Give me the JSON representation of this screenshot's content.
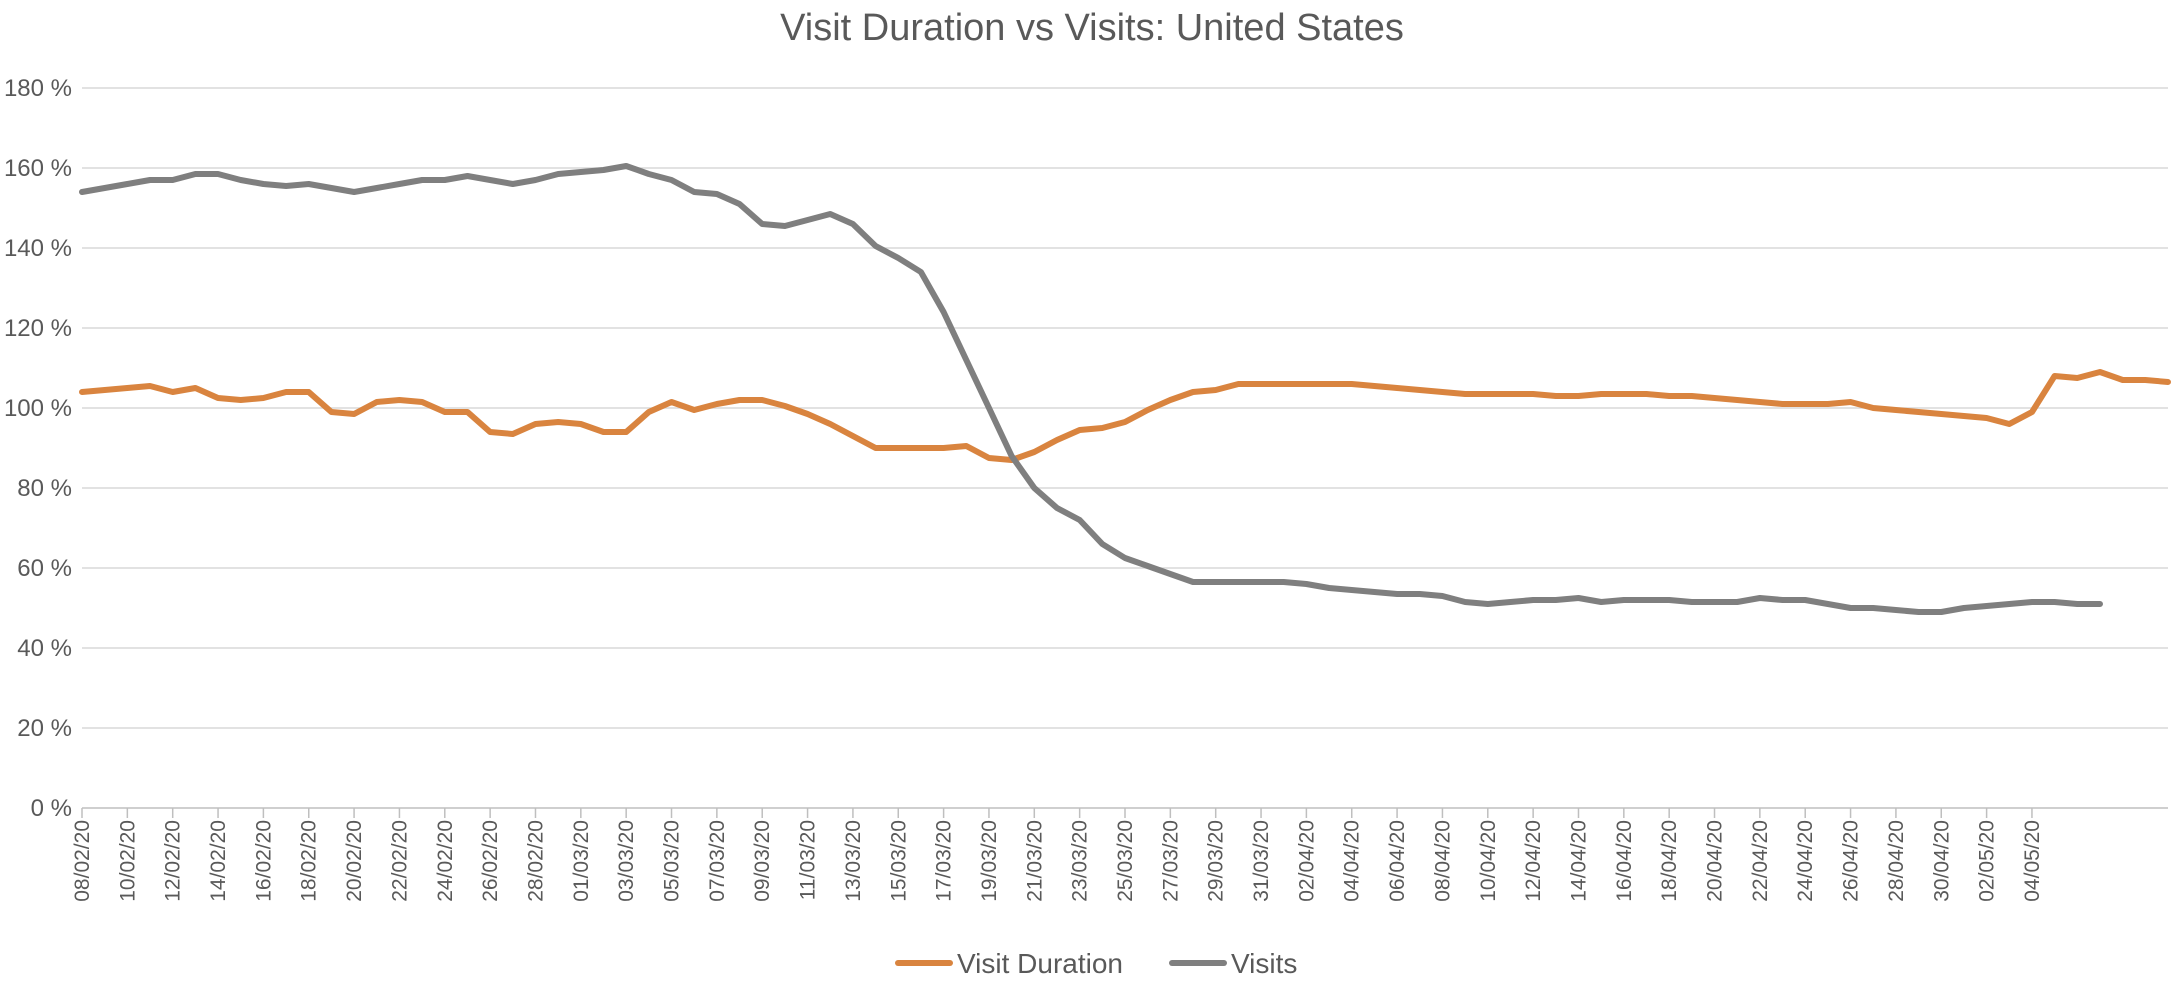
{
  "chart_data": {
    "type": "line",
    "title": "Visit Duration vs Visits: United States",
    "xlabel": "",
    "ylabel": "",
    "ylim": [
      0,
      180
    ],
    "yticks": [
      0,
      20,
      40,
      60,
      80,
      100,
      120,
      140,
      160,
      180
    ],
    "ytick_labels": [
      "0 %",
      "20 %",
      "40 %",
      "60 %",
      "80 %",
      "100 %",
      "120 %",
      "140 %",
      "160 %",
      "180 %"
    ],
    "grid": true,
    "legend_position": "bottom",
    "x_tick_labels": [
      "08/02/20",
      "10/02/20",
      "12/02/20",
      "14/02/20",
      "16/02/20",
      "18/02/20",
      "20/02/20",
      "22/02/20",
      "24/02/20",
      "26/02/20",
      "28/02/20",
      "01/03/20",
      "03/03/20",
      "05/03/20",
      "07/03/20",
      "09/03/20",
      "11/03/20",
      "13/03/20",
      "15/03/20",
      "17/03/20",
      "19/03/20",
      "21/03/20",
      "23/03/20",
      "25/03/20",
      "27/03/20",
      "29/03/20",
      "31/03/20",
      "02/04/20",
      "04/04/20",
      "06/04/20",
      "08/04/20",
      "10/04/20",
      "12/04/20",
      "14/04/20",
      "16/04/20",
      "18/04/20",
      "20/04/20",
      "22/04/20",
      "24/04/20",
      "26/04/20",
      "28/04/20",
      "30/04/20",
      "02/05/20",
      "04/05/20"
    ],
    "x_start": "08/02/20",
    "x_end": "04/05/20",
    "series": [
      {
        "name": "Visit Duration",
        "color": "#d9843f",
        "values": [
          104,
          104.5,
          105,
          105.5,
          104,
          105,
          102.5,
          102,
          102.5,
          104,
          104,
          99,
          98.5,
          101.5,
          102,
          101.5,
          99,
          99,
          94,
          93.5,
          96,
          96.5,
          96,
          94,
          94,
          99,
          101.5,
          99.5,
          101,
          102,
          102,
          100.5,
          98.5,
          96,
          93,
          90,
          90,
          90,
          90,
          90.5,
          87.5,
          87,
          89,
          92,
          94.5,
          95,
          96.5,
          99.5,
          102,
          104,
          104.5,
          106,
          106,
          106,
          106,
          106,
          106,
          105.5,
          105,
          104.5,
          104,
          103.5,
          103.5,
          103.5,
          103.5,
          103,
          103,
          103.5,
          103.5,
          103.5,
          103,
          103,
          102.5,
          102,
          101.5,
          101,
          101,
          101,
          101.5,
          100,
          99.5,
          99,
          98.5,
          98,
          97.5,
          96,
          99,
          108,
          107.5,
          109,
          107,
          107,
          106.5
        ]
      },
      {
        "name": "Visits",
        "color": "#7f7f7f",
        "values": [
          154,
          155,
          156,
          157,
          157,
          158.5,
          158.5,
          157,
          156,
          155.5,
          156,
          155,
          154,
          155,
          156,
          157,
          157,
          158,
          157,
          156,
          157,
          158.5,
          159,
          159.5,
          160.5,
          158.5,
          157,
          154,
          153.5,
          151,
          146,
          145.5,
          147,
          148.5,
          146,
          140.5,
          137.5,
          134,
          124,
          112,
          100,
          88,
          80,
          75,
          72,
          66,
          62.5,
          60.5,
          58.5,
          56.5,
          56.5,
          56.5,
          56.5,
          56.5,
          56,
          55,
          54.5,
          54,
          53.5,
          53.5,
          53,
          51.5,
          51,
          51.5,
          52,
          52,
          52.5,
          51.5,
          52,
          52,
          52,
          51.5,
          51.5,
          51.5,
          52.5,
          52,
          52,
          51,
          50,
          50,
          49.5,
          49,
          49,
          50,
          50.5,
          51,
          51.5,
          51.5,
          51,
          51
        ]
      }
    ]
  }
}
